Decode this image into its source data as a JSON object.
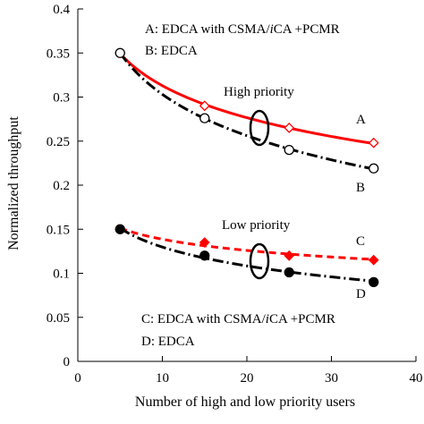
{
  "chart_data": {
    "type": "line",
    "title": "",
    "xlabel": "Number of high and low priority users",
    "ylabel": "Normalized throughput",
    "xlim": [
      0,
      40
    ],
    "ylim": [
      0,
      0.4
    ],
    "xticks": [
      "0",
      "10",
      "20",
      "30",
      "40"
    ],
    "yticks": [
      "0",
      "0.05",
      "0.1",
      "0.15",
      "0.2",
      "0.25",
      "0.3",
      "0.35",
      "0.4"
    ],
    "grid": false,
    "series": [
      {
        "name": "A",
        "color": "#ff0000",
        "line": "solid",
        "marker": "open-diamond",
        "x": [
          5,
          15,
          25,
          35
        ],
        "y": [
          0.35,
          0.29,
          0.265,
          0.248
        ]
      },
      {
        "name": "B",
        "color": "#000000",
        "line": "dash-dot",
        "marker": "open-circle",
        "x": [
          5,
          15,
          25,
          35
        ],
        "y": [
          0.35,
          0.276,
          0.24,
          0.219
        ]
      },
      {
        "name": "C",
        "color": "#ff0000",
        "line": "dashed",
        "marker": "filled-diamond",
        "x": [
          5,
          15,
          25,
          35
        ],
        "y": [
          0.15,
          0.135,
          0.12,
          0.115
        ]
      },
      {
        "name": "D",
        "color": "#000000",
        "line": "dash-dot",
        "marker": "filled-circle",
        "x": [
          5,
          15,
          25,
          35
        ],
        "y": [
          0.15,
          0.12,
          0.101,
          0.09
        ]
      }
    ],
    "legend_top": [
      {
        "prefix": "A:  EDCA with CSMA/",
        "italic": "i",
        "suffix": "CA +PCMR"
      },
      {
        "prefix": "B:  EDCA",
        "italic": "",
        "suffix": ""
      }
    ],
    "legend_bottom": [
      {
        "prefix": "C:  EDCA with CSMA/",
        "italic": "i",
        "suffix": "CA +PCMR"
      },
      {
        "prefix": "D:  EDCA",
        "italic": "",
        "suffix": ""
      }
    ],
    "annotations": {
      "high_priority": "High priority",
      "low_priority": "Low priority",
      "label_a": "A",
      "label_b": "B",
      "label_c": "C",
      "label_d": "D"
    }
  }
}
